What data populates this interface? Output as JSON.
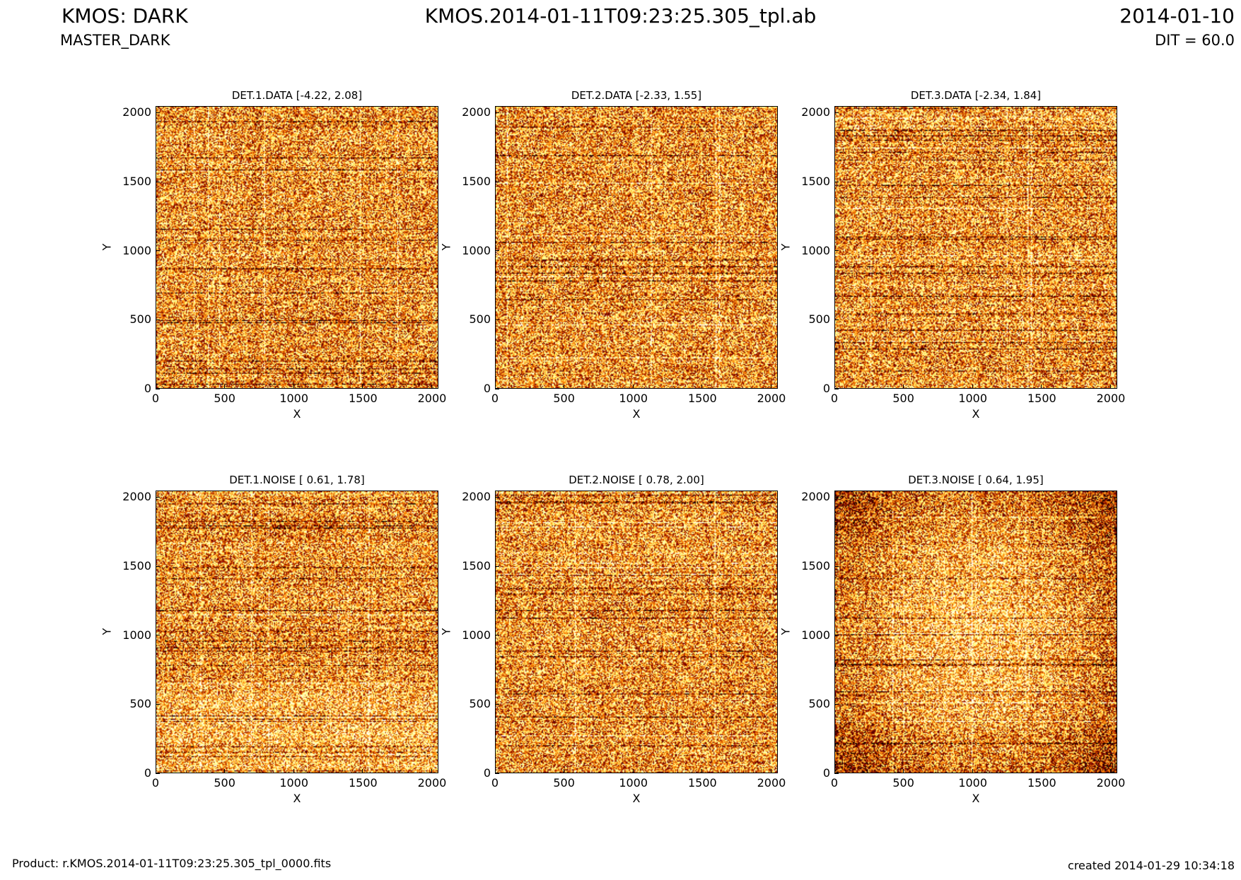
{
  "header": {
    "title": "KMOS: DARK",
    "subtitle": "MASTER_DARK",
    "center_title": "KMOS.2014-01-11T09:23:25.305_tpl.ab",
    "date": "2014-01-10",
    "dit": "DIT = 60.0"
  },
  "footer": {
    "product": "Product: r.KMOS.2014-01-11T09:23:25.305_tpl_0000.fits",
    "created": "created 2014-01-29 10:34:18"
  },
  "colors": {
    "colormap": "afmhot",
    "frame": "#000000",
    "background": "#ffffff"
  },
  "chart_data": [
    {
      "type": "heatmap",
      "title": "DET.1.DATA [-4.22, 2.08]",
      "xlabel": "X",
      "ylabel": "Y",
      "xlim": [
        0,
        2048
      ],
      "ylim": [
        0,
        2048
      ],
      "xticks": [
        "0",
        "500",
        "1000",
        "1500",
        "2000"
      ],
      "yticks": [
        "0",
        "500",
        "1000",
        "1500",
        "2000"
      ],
      "value_range": [
        -4.22,
        2.08
      ],
      "colormap": "afmhot"
    },
    {
      "type": "heatmap",
      "title": "DET.2.DATA [-2.33, 1.55]",
      "xlabel": "X",
      "ylabel": "Y",
      "xlim": [
        0,
        2048
      ],
      "ylim": [
        0,
        2048
      ],
      "xticks": [
        "0",
        "500",
        "1000",
        "1500",
        "2000"
      ],
      "yticks": [
        "0",
        "500",
        "1000",
        "1500",
        "2000"
      ],
      "value_range": [
        -2.33,
        1.55
      ],
      "colormap": "afmhot"
    },
    {
      "type": "heatmap",
      "title": "DET.3.DATA [-2.34, 1.84]",
      "xlabel": "X",
      "ylabel": "Y",
      "xlim": [
        0,
        2048
      ],
      "ylim": [
        0,
        2048
      ],
      "xticks": [
        "0",
        "500",
        "1000",
        "1500",
        "2000"
      ],
      "yticks": [
        "0",
        "500",
        "1000",
        "1500",
        "2000"
      ],
      "value_range": [
        -2.34,
        1.84
      ],
      "colormap": "afmhot"
    },
    {
      "type": "heatmap",
      "title": "DET.1.NOISE [ 0.61, 1.78]",
      "xlabel": "X",
      "ylabel": "Y",
      "xlim": [
        0,
        2048
      ],
      "ylim": [
        0,
        2048
      ],
      "xticks": [
        "0",
        "500",
        "1000",
        "1500",
        "2000"
      ],
      "yticks": [
        "0",
        "500",
        "1000",
        "1500",
        "2000"
      ],
      "value_range": [
        0.61,
        1.78
      ],
      "colormap": "afmhot"
    },
    {
      "type": "heatmap",
      "title": "DET.2.NOISE [ 0.78, 2.00]",
      "xlabel": "X",
      "ylabel": "Y",
      "xlim": [
        0,
        2048
      ],
      "ylim": [
        0,
        2048
      ],
      "xticks": [
        "0",
        "500",
        "1000",
        "1500",
        "2000"
      ],
      "yticks": [
        "0",
        "500",
        "1000",
        "1500",
        "2000"
      ],
      "value_range": [
        0.78,
        2.0
      ],
      "colormap": "afmhot"
    },
    {
      "type": "heatmap",
      "title": "DET.3.NOISE [ 0.64, 1.95]",
      "xlabel": "X",
      "ylabel": "Y",
      "xlim": [
        0,
        2048
      ],
      "ylim": [
        0,
        2048
      ],
      "xticks": [
        "0",
        "500",
        "1000",
        "1500",
        "2000"
      ],
      "yticks": [
        "0",
        "500",
        "1000",
        "1500",
        "2000"
      ],
      "value_range": [
        0.64,
        1.95
      ],
      "colormap": "afmhot"
    }
  ]
}
